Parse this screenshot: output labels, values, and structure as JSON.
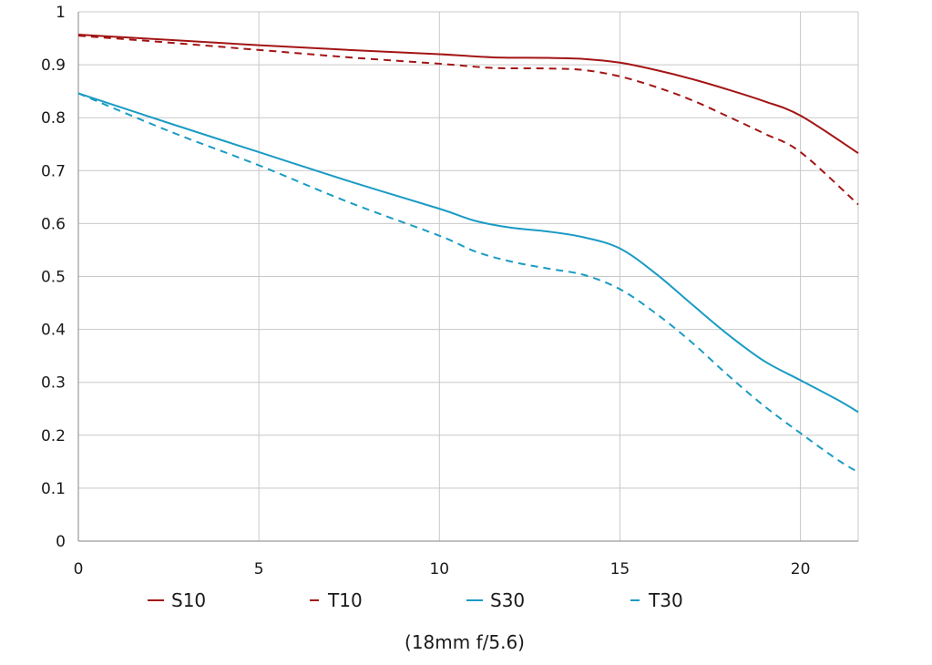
{
  "chart_data": {
    "type": "line",
    "title": "",
    "xlabel": "",
    "ylabel": "",
    "caption": "(18mm f/5.6)",
    "xlim": [
      0,
      21.6
    ],
    "ylim": [
      0,
      1
    ],
    "x_ticks": [
      0,
      5,
      10,
      15,
      20
    ],
    "y_ticks": [
      0,
      0.1,
      0.2,
      0.3,
      0.4,
      0.5,
      0.6,
      0.7,
      0.8,
      0.9,
      1
    ],
    "x_tick_labels": [
      "0",
      "5",
      "10",
      "15",
      "20"
    ],
    "y_tick_labels": [
      "0",
      "0.1",
      "0.2",
      "0.3",
      "0.4",
      "0.5",
      "0.6",
      "0.7",
      "0.8",
      "0.9",
      "1"
    ],
    "grid": true,
    "legend_position": "bottom",
    "series": [
      {
        "name": "S10",
        "color": "#a31515",
        "dash": "solid",
        "x": [
          0,
          2.5,
          5,
          7.5,
          10,
          11.5,
          13,
          14,
          15,
          16,
          17,
          18,
          19,
          20,
          21.6
        ],
        "y": [
          0.957,
          0.947,
          0.937,
          0.928,
          0.92,
          0.914,
          0.913,
          0.911,
          0.904,
          0.89,
          0.873,
          0.853,
          0.831,
          0.804,
          0.733
        ]
      },
      {
        "name": "T10",
        "color": "#a31515",
        "dash": "dashed",
        "x": [
          0,
          2.5,
          5,
          7.5,
          10,
          11.5,
          13,
          14,
          15,
          16,
          17,
          18,
          19,
          20,
          21.6
        ],
        "y": [
          0.955,
          0.942,
          0.928,
          0.914,
          0.902,
          0.894,
          0.893,
          0.89,
          0.878,
          0.858,
          0.833,
          0.802,
          0.77,
          0.735,
          0.636
        ]
      },
      {
        "name": "S30",
        "color": "#1a9bc4",
        "dash": "solid",
        "x": [
          0,
          2.5,
          5,
          7.5,
          10,
          11,
          12,
          13,
          14,
          15,
          16,
          17,
          18,
          19,
          20,
          21,
          21.6
        ],
        "y": [
          0.846,
          0.79,
          0.735,
          0.68,
          0.628,
          0.605,
          0.592,
          0.585,
          0.574,
          0.553,
          0.505,
          0.447,
          0.39,
          0.34,
          0.304,
          0.268,
          0.244
        ]
      },
      {
        "name": "T30",
        "color": "#1a9bc4",
        "dash": "dashed",
        "x": [
          0,
          2.5,
          5,
          7.5,
          10,
          11,
          12,
          13,
          14,
          15,
          16,
          17,
          18,
          19,
          20,
          21,
          21.6
        ],
        "y": [
          0.846,
          0.775,
          0.71,
          0.64,
          0.577,
          0.547,
          0.528,
          0.515,
          0.503,
          0.476,
          0.43,
          0.375,
          0.313,
          0.255,
          0.204,
          0.155,
          0.13
        ]
      }
    ]
  }
}
